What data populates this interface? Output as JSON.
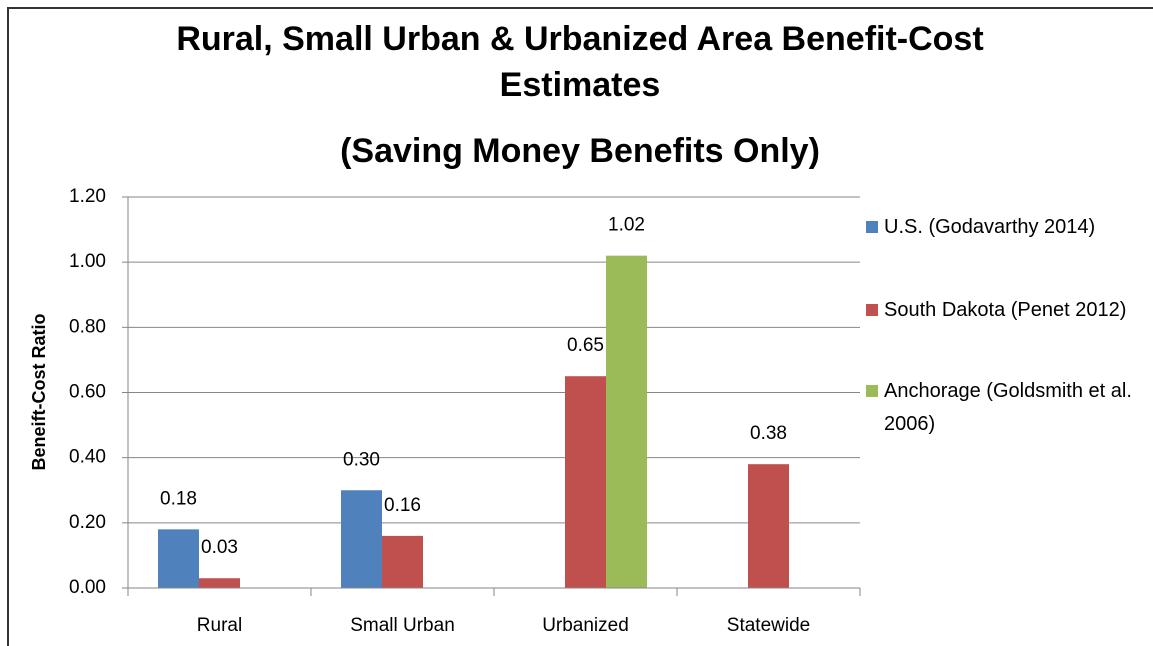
{
  "chart_data": {
    "type": "bar",
    "title": "Rural, Small Urban & Urbanized Area Benefit-Cost Estimates",
    "subtitle": "(Saving Money Benefits Only)",
    "y_label": "Beneift-Cost Ratio",
    "categories": [
      "Rural",
      "Small Urban",
      "Urbanized",
      "Statewide"
    ],
    "series": [
      {
        "name": "U.S. (Godavarthy 2014)",
        "color": "#4f81bd",
        "values": [
          0.18,
          0.3,
          null,
          null
        ],
        "value_labels": [
          "0.18",
          "0.30",
          null,
          null
        ]
      },
      {
        "name": "South Dakota (Penet 2012)",
        "color": "#c0504d",
        "values": [
          0.03,
          0.16,
          0.65,
          0.38
        ],
        "value_labels": [
          "0.03",
          "0.16",
          "0.65",
          "0.38"
        ]
      },
      {
        "name": "Anchorage (Goldsmith et al. 2006)",
        "color": "#9bbb59",
        "values": [
          null,
          null,
          1.02,
          null
        ],
        "value_labels": [
          null,
          null,
          "1.02",
          null
        ]
      }
    ],
    "ylim": [
      0,
      1.2
    ],
    "yticks": [
      {
        "value": 0,
        "label": "0.00"
      },
      {
        "value": 0.2,
        "label": "0.20"
      },
      {
        "value": 0.4,
        "label": "0.40"
      },
      {
        "value": 0.6,
        "label": "0.60"
      },
      {
        "value": 0.8,
        "label": "0.80"
      },
      {
        "value": 1.0,
        "label": "1.00"
      },
      {
        "value": 1.2,
        "label": "1.20"
      }
    ],
    "grid": true,
    "legend": "right"
  }
}
